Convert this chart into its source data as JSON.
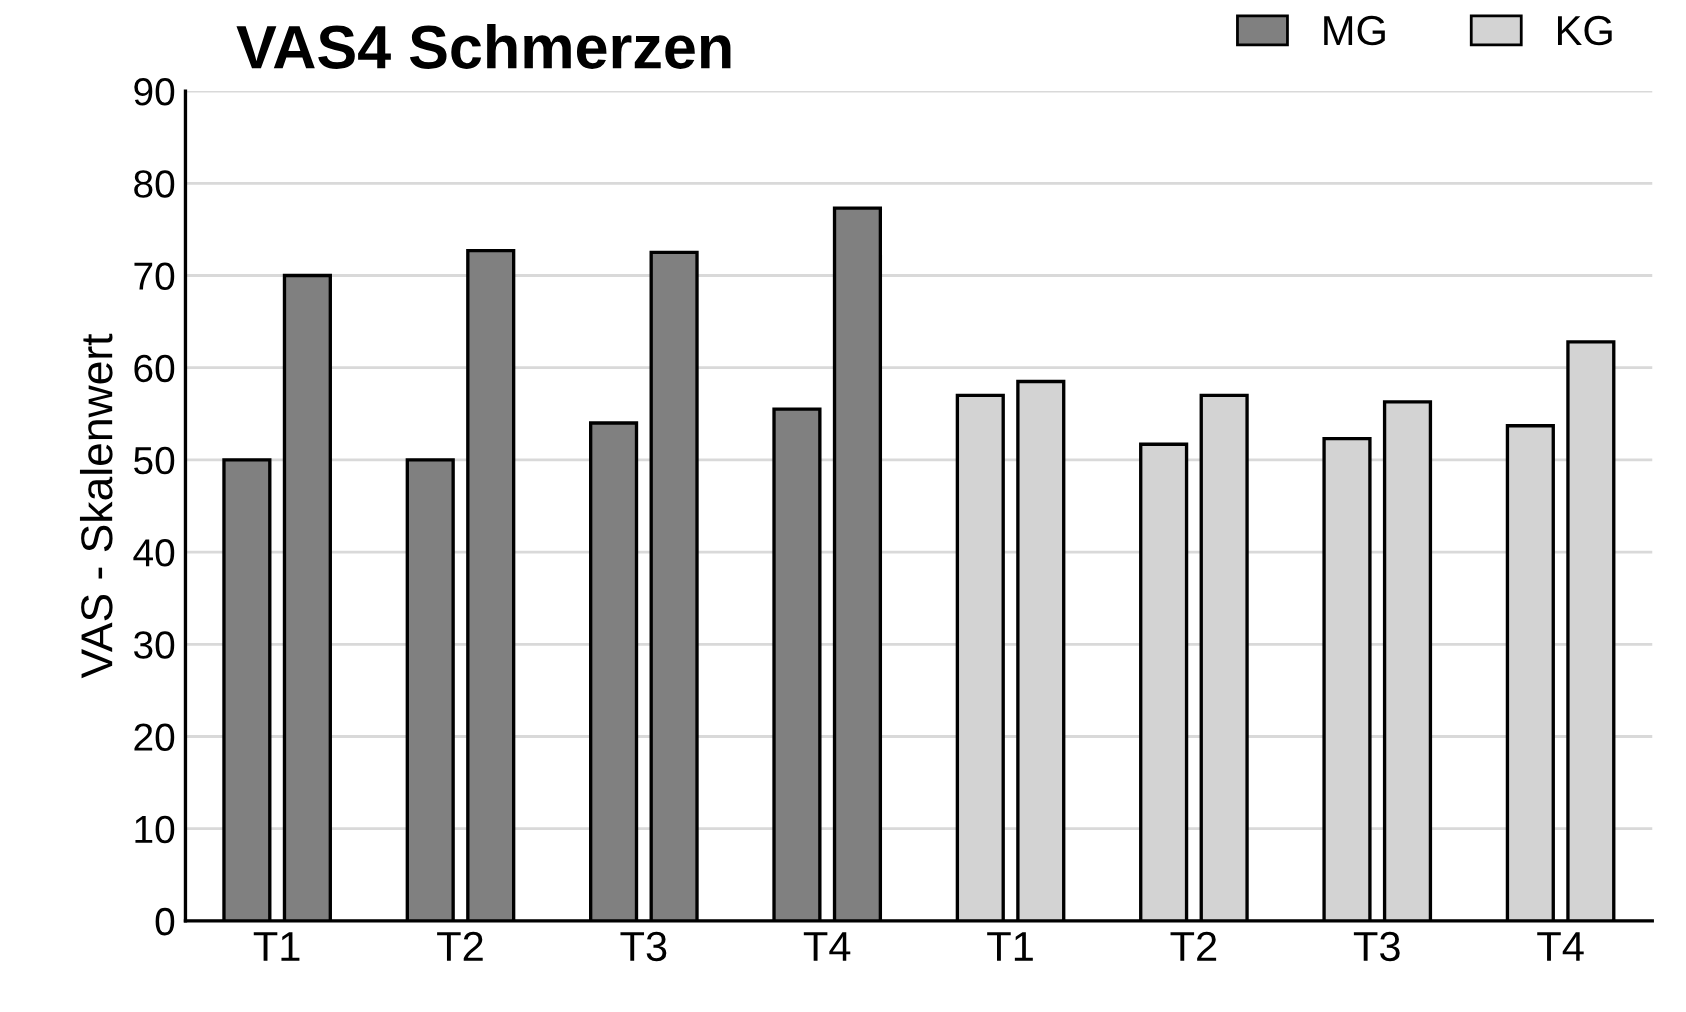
{
  "chart_data": {
    "type": "bar",
    "title": "VAS4 Schmerzen",
    "ylabel": "VAS - Skalenwert",
    "categories": [
      "T1",
      "T2",
      "T3",
      "T4",
      "T1",
      "T2",
      "T3",
      "T4"
    ],
    "series": [
      {
        "name": "MG",
        "color": "#808080",
        "values": [
          50,
          50,
          54,
          55.5,
          null,
          null,
          null,
          null
        ]
      },
      {
        "color": "#808080",
        "values": [
          70,
          72.7,
          72.5,
          77.3,
          null,
          null,
          null,
          null
        ]
      },
      {
        "name": "KG",
        "color": "#d3d3d3",
        "values": [
          null,
          null,
          null,
          null,
          57,
          51.7,
          52.3,
          53.7
        ]
      },
      {
        "color": "#d3d3d3",
        "values": [
          null,
          null,
          null,
          null,
          58.5,
          57,
          56.3,
          62.8
        ]
      }
    ],
    "ylim": [
      0,
      90
    ],
    "yticks": [
      0,
      10,
      20,
      30,
      40,
      50,
      60,
      70,
      80,
      90
    ],
    "grid": "y",
    "legend": "top right"
  }
}
